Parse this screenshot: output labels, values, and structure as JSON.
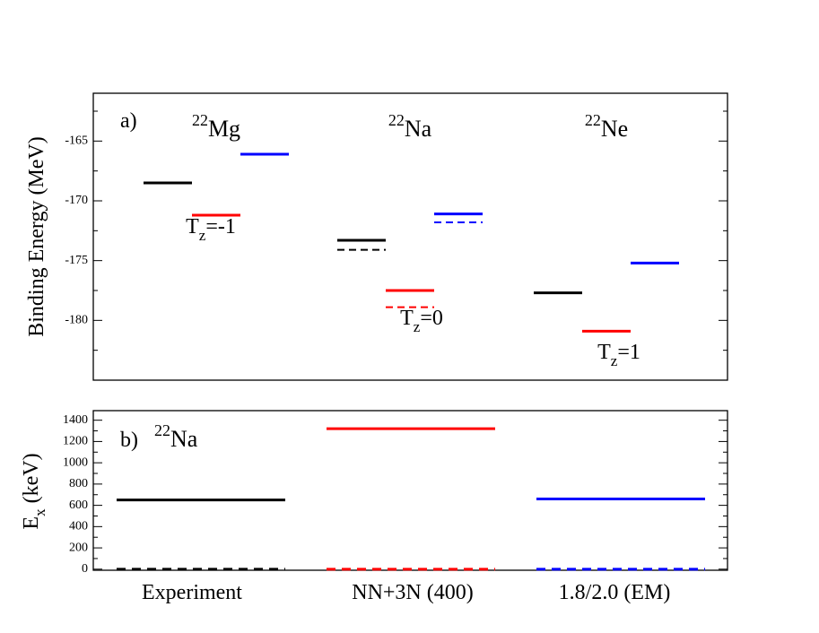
{
  "chart_data": [
    {
      "type": "level",
      "panel_label": "a)",
      "ylabel": "Binding Energy (MeV)",
      "nuclei": [
        {
          "mass": "22",
          "symbol": "Mg"
        },
        {
          "mass": "22",
          "symbol": "Na"
        },
        {
          "mass": "22",
          "symbol": "Ne"
        }
      ],
      "annotations": [
        {
          "base": "T",
          "sub": "z",
          "rest": "=-1"
        },
        {
          "base": "T",
          "sub": "z",
          "rest": "=0"
        },
        {
          "base": "T",
          "sub": "z",
          "rest": "=1"
        }
      ],
      "series": [
        {
          "color": "#000000",
          "values": [
            -168.5,
            -173.3,
            -177.7
          ],
          "dashed_values": [
            null,
            -174.1,
            null
          ]
        },
        {
          "color": "#ff0000",
          "values": [
            -171.2,
            -177.5,
            -180.9
          ],
          "dashed_values": [
            null,
            -178.9,
            null
          ]
        },
        {
          "color": "#0000ff",
          "values": [
            -166.1,
            -171.1,
            -175.2
          ],
          "dashed_values": [
            null,
            -171.8,
            null
          ]
        }
      ],
      "ylim": [
        -185,
        -161
      ],
      "yticks": [
        -165,
        -170,
        -175,
        -180
      ],
      "yminorticks": [
        -162.5,
        -167.5,
        -172.5,
        -177.5,
        -182.5
      ]
    },
    {
      "type": "level",
      "panel_label": "b)",
      "nucleus": {
        "mass": "22",
        "symbol": "Na"
      },
      "ylabel": {
        "base": "E",
        "sub": "x",
        "rest": " (keV)"
      },
      "categories": [
        "Experiment",
        "NN+3N (400)",
        "1.8/2.0 (EM)"
      ],
      "colors": [
        "#000000",
        "#ff0000",
        "#0000ff"
      ],
      "values": [
        650,
        1320,
        660
      ],
      "ground_values": [
        0,
        0,
        0
      ],
      "ylim": [
        -10,
        1490
      ],
      "yticks": [
        0,
        200,
        400,
        600,
        800,
        1000,
        1200,
        1400
      ],
      "yminorticks": [
        100,
        300,
        500,
        700,
        900,
        1100,
        1300
      ]
    }
  ]
}
